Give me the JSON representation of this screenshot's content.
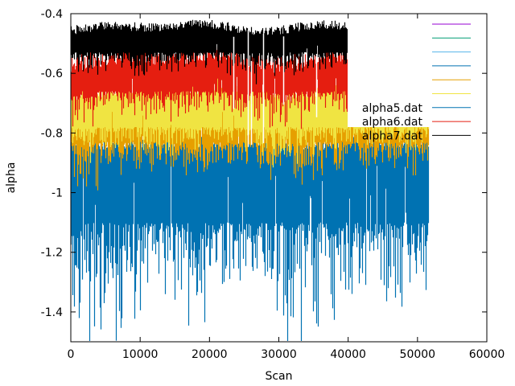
{
  "chart_data": {
    "type": "line",
    "xlabel": "Scan",
    "ylabel": "alpha",
    "xlim": [
      0,
      60000
    ],
    "ylim": [
      -1.5,
      -0.4
    ],
    "x_ticks": [
      0,
      10000,
      20000,
      30000,
      40000,
      50000,
      60000
    ],
    "x_tick_labels": [
      "0",
      "10000",
      "20000",
      "30000",
      "40000",
      "50000",
      "60000"
    ],
    "y_ticks": [
      -1.4,
      -1.2,
      -1.0,
      -0.8,
      -0.6,
      -0.4
    ],
    "y_tick_labels": [
      "-1.4",
      "-1.2",
      "-1",
      "-0.8",
      "-0.6",
      "-0.4"
    ],
    "grid": false,
    "legend_position": "top-right",
    "x_range_of_data": [
      0,
      51600
    ],
    "series": [
      {
        "name": "",
        "color": "#9400d3",
        "band": [
          -0.42,
          -0.42
        ]
      },
      {
        "name": "",
        "color": "#009e73",
        "band": [
          -0.84,
          -0.82
        ]
      },
      {
        "name": "",
        "color": "#56b4e9",
        "band": [
          -0.86,
          -0.84
        ]
      },
      {
        "name": "",
        "color": "#0072b2",
        "band": [
          -1.1,
          -0.82
        ]
      },
      {
        "name": "",
        "color": "#e69f00",
        "band": [
          -0.83,
          -0.66
        ]
      },
      {
        "name": "",
        "color": "#f0e442",
        "band": [
          -0.78,
          -0.63
        ]
      },
      {
        "name": "alpha5.dat",
        "color": "#0072b2",
        "band": [
          -1.1,
          -0.82
        ]
      },
      {
        "name": "alpha6.dat",
        "color": "#e51e10",
        "band": [
          -0.66,
          -0.52
        ]
      },
      {
        "name": "alpha7.dat",
        "color": "#000000",
        "band": [
          -0.53,
          -0.43
        ]
      }
    ]
  }
}
